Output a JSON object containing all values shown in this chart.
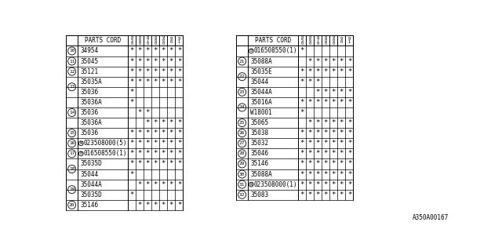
{
  "font_size": 5.5,
  "line_color": "#000000",
  "col_headers": [
    "8\n5\n0",
    "8\n6\n0",
    "8\n7\n0",
    "8\n8\n0",
    "9\n0\n0",
    "9\n0",
    "9\n1"
  ],
  "left_table": {
    "rows": [
      {
        "num": "10",
        "part": "34954",
        "marks": [
          1,
          1,
          1,
          1,
          1,
          1,
          1
        ]
      },
      {
        "num": "11",
        "part": "35045",
        "marks": [
          1,
          1,
          1,
          1,
          1,
          1,
          1
        ]
      },
      {
        "num": "12",
        "part": "35121",
        "marks": [
          1,
          1,
          1,
          1,
          1,
          1,
          1
        ]
      },
      {
        "num": "13",
        "part": "35035A",
        "marks": [
          1,
          1,
          1,
          1,
          1,
          1,
          1
        ]
      },
      {
        "num": "",
        "part": "35036",
        "marks": [
          1,
          0,
          0,
          0,
          0,
          0,
          0
        ]
      },
      {
        "num": "14",
        "part": "35036A",
        "marks": [
          1,
          0,
          0,
          0,
          0,
          0,
          0
        ],
        "group_size": 4
      },
      {
        "num": "",
        "part": "35036",
        "marks": [
          0,
          1,
          1,
          0,
          0,
          0,
          0
        ]
      },
      {
        "num": "",
        "part": "35036A",
        "marks": [
          0,
          0,
          1,
          1,
          1,
          1,
          1
        ]
      },
      {
        "num": "15",
        "part": "35036",
        "marks": [
          1,
          1,
          1,
          1,
          1,
          1,
          1
        ]
      },
      {
        "num": "16",
        "part": "023508000(5)",
        "marks": [
          1,
          1,
          1,
          1,
          1,
          1,
          1
        ],
        "prefix": "N"
      },
      {
        "num": "17",
        "part": "016508550(1)",
        "marks": [
          1,
          1,
          1,
          1,
          1,
          1,
          1
        ],
        "prefix": "B"
      },
      {
        "num": "18",
        "part": "35035D",
        "marks": [
          1,
          1,
          1,
          1,
          1,
          1,
          1
        ]
      },
      {
        "num": "",
        "part": "35044",
        "marks": [
          1,
          0,
          0,
          0,
          0,
          0,
          0
        ]
      },
      {
        "num": "19",
        "part": "35044A",
        "marks": [
          0,
          1,
          1,
          1,
          1,
          1,
          1
        ],
        "group_size": 2
      },
      {
        "num": "",
        "part": "35035D",
        "marks": [
          1,
          0,
          0,
          0,
          0,
          0,
          0
        ]
      },
      {
        "num": "20",
        "part": "35146",
        "marks": [
          0,
          1,
          1,
          1,
          1,
          1,
          1
        ],
        "group_size": 2
      }
    ]
  },
  "right_table": {
    "rows": [
      {
        "num": "",
        "part": "016508550(1)",
        "marks": [
          1,
          0,
          0,
          0,
          0,
          0,
          0
        ],
        "prefix": "B"
      },
      {
        "num": "21",
        "part": "35088A",
        "marks": [
          0,
          1,
          1,
          1,
          1,
          1,
          1
        ],
        "group_size": 2
      },
      {
        "num": "22",
        "part": "35035E",
        "marks": [
          1,
          1,
          1,
          1,
          1,
          1,
          1
        ]
      },
      {
        "num": "",
        "part": "35044",
        "marks": [
          1,
          1,
          1,
          0,
          0,
          0,
          0
        ]
      },
      {
        "num": "23",
        "part": "35044A",
        "marks": [
          0,
          0,
          1,
          1,
          1,
          1,
          1
        ],
        "group_size": 2
      },
      {
        "num": "24",
        "part": "35016A",
        "marks": [
          1,
          1,
          1,
          1,
          1,
          1,
          1
        ]
      },
      {
        "num": "",
        "part": "W18001",
        "marks": [
          1,
          0,
          0,
          0,
          0,
          0,
          0
        ]
      },
      {
        "num": "25",
        "part": "35065",
        "marks": [
          0,
          1,
          1,
          1,
          1,
          1,
          1
        ],
        "group_size": 2
      },
      {
        "num": "26",
        "part": "35038",
        "marks": [
          1,
          1,
          1,
          1,
          1,
          1,
          1
        ]
      },
      {
        "num": "27",
        "part": "35032",
        "marks": [
          1,
          1,
          1,
          1,
          1,
          1,
          1
        ]
      },
      {
        "num": "28",
        "part": "35046",
        "marks": [
          1,
          1,
          1,
          1,
          1,
          1,
          1
        ]
      },
      {
        "num": "29",
        "part": "35146",
        "marks": [
          1,
          1,
          1,
          1,
          1,
          1,
          1
        ]
      },
      {
        "num": "30",
        "part": "35088A",
        "marks": [
          1,
          1,
          1,
          1,
          1,
          1,
          1
        ]
      },
      {
        "num": "31",
        "part": "023508000(1)",
        "marks": [
          1,
          1,
          1,
          1,
          1,
          1,
          1
        ],
        "prefix": "N"
      },
      {
        "num": "32",
        "part": "35083",
        "marks": [
          1,
          1,
          1,
          1,
          1,
          1,
          1
        ]
      }
    ]
  },
  "footer": "A350A00167"
}
